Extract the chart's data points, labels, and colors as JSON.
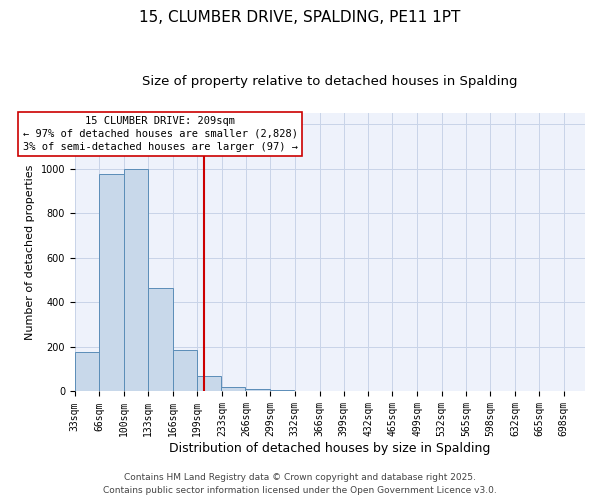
{
  "title": "15, CLUMBER DRIVE, SPALDING, PE11 1PT",
  "subtitle": "Size of property relative to detached houses in Spalding",
  "xlabel": "Distribution of detached houses by size in Spalding",
  "ylabel": "Number of detached properties",
  "bar_lefts": [
    33,
    66,
    100,
    133,
    166,
    199,
    232,
    265,
    298,
    331,
    364,
    397,
    430,
    463,
    496,
    529,
    562,
    595,
    628,
    661,
    694
  ],
  "bar_rights": [
    66,
    100,
    133,
    166,
    199,
    232,
    265,
    298,
    331,
    364,
    397,
    430,
    463,
    496,
    529,
    562,
    595,
    628,
    661,
    694,
    727
  ],
  "bar_heights": [
    175,
    975,
    1000,
    465,
    185,
    70,
    20,
    10,
    5,
    0,
    0,
    0,
    0,
    0,
    0,
    0,
    0,
    0,
    0,
    0,
    0
  ],
  "bar_color": "#c8d8ea",
  "bar_edgecolor": "#5b8db8",
  "vline_x": 209,
  "vline_color": "#cc0000",
  "annotation_title": "15 CLUMBER DRIVE: 209sqm",
  "annotation_line1": "← 97% of detached houses are smaller (2,828)",
  "annotation_line2": "3% of semi-detached houses are larger (97) →",
  "annotation_fontsize": 7.5,
  "ylim": [
    0,
    1250
  ],
  "xlim": [
    33,
    727
  ],
  "tick_labels": [
    "33sqm",
    "66sqm",
    "100sqm",
    "133sqm",
    "166sqm",
    "199sqm",
    "233sqm",
    "266sqm",
    "299sqm",
    "332sqm",
    "366sqm",
    "399sqm",
    "432sqm",
    "465sqm",
    "499sqm",
    "532sqm",
    "565sqm",
    "598sqm",
    "632sqm",
    "665sqm",
    "698sqm"
  ],
  "tick_positions": [
    33,
    66,
    100,
    133,
    166,
    199,
    233,
    266,
    299,
    332,
    366,
    399,
    432,
    465,
    499,
    532,
    565,
    598,
    632,
    665,
    698
  ],
  "grid_color": "#c8d4e8",
  "background_color": "#eef2fb",
  "footer1": "Contains HM Land Registry data © Crown copyright and database right 2025.",
  "footer2": "Contains public sector information licensed under the Open Government Licence v3.0.",
  "title_fontsize": 11,
  "subtitle_fontsize": 9.5,
  "xlabel_fontsize": 9,
  "ylabel_fontsize": 8,
  "tick_fontsize": 7,
  "footer_fontsize": 6.5
}
